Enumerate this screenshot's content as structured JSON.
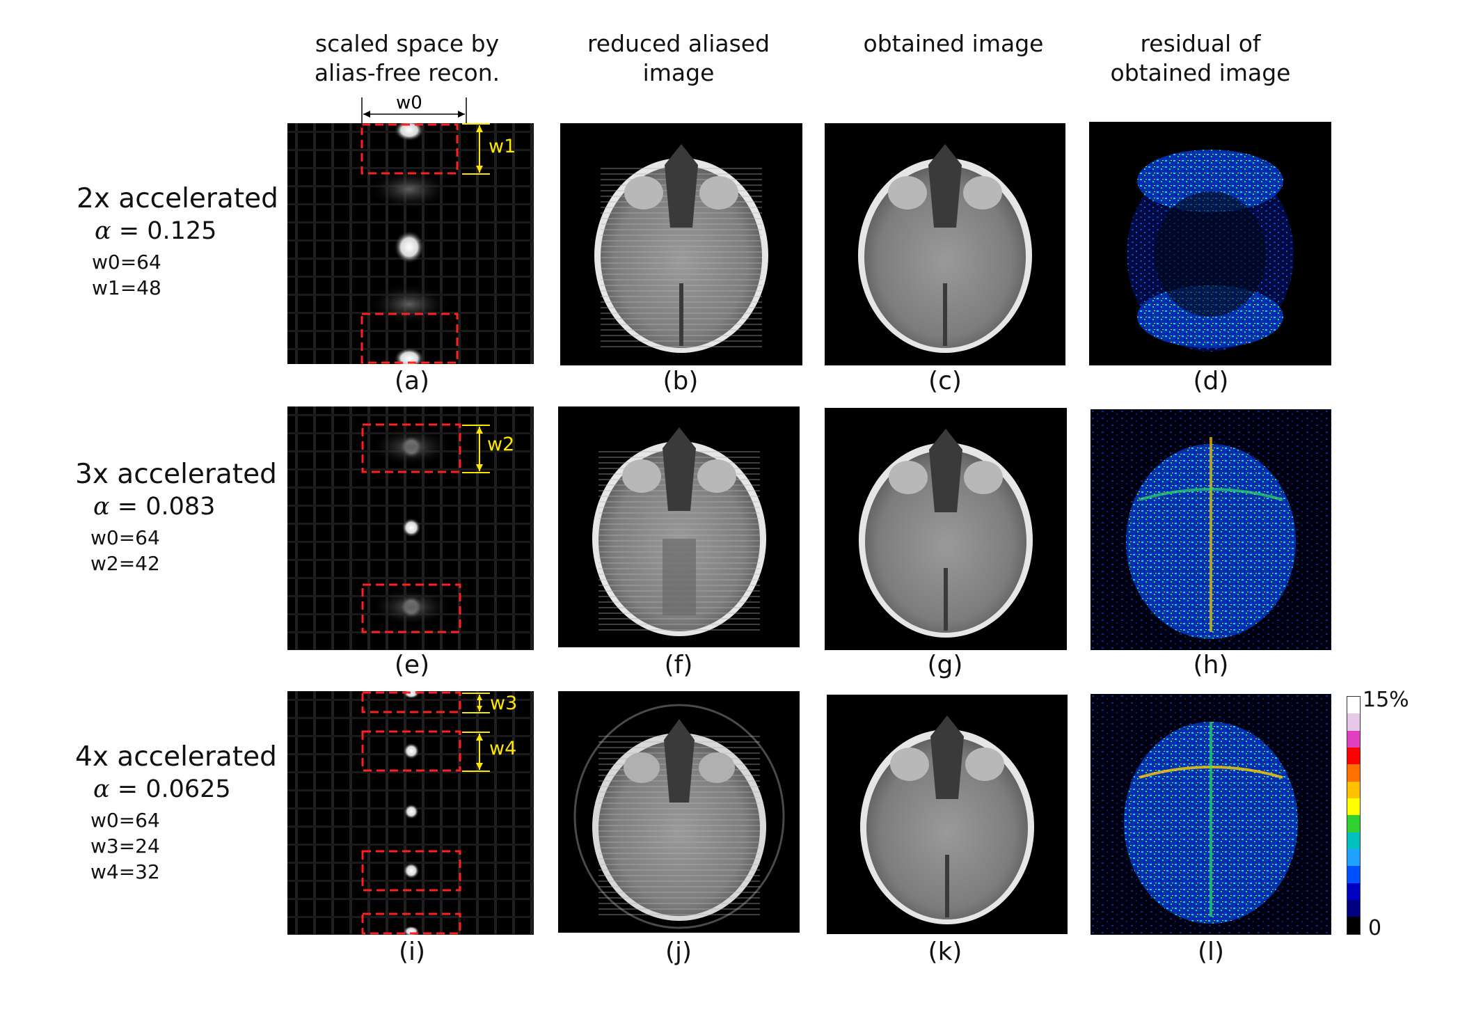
{
  "columns": [
    {
      "title": "scaled space by\nalias-free recon."
    },
    {
      "title": "reduced aliased\nimage"
    },
    {
      "title": "obtained image"
    },
    {
      "title": "residual of\nobtained image"
    }
  ],
  "rows": [
    {
      "acceleration": "2x accelerated",
      "alpha_symbol": "α",
      "alpha_value": "= 0.125",
      "widths": [
        "w0=64",
        "w1=48"
      ]
    },
    {
      "acceleration": "3x accelerated",
      "alpha_symbol": "α",
      "alpha_value": "= 0.083",
      "widths": [
        "w0=64",
        "w2=42"
      ]
    },
    {
      "acceleration": "4x accelerated",
      "alpha_symbol": "α",
      "alpha_value": "= 0.0625",
      "widths": [
        "w0=64",
        "w3=24",
        "w4=32"
      ]
    }
  ],
  "panel_labels": [
    "(a)",
    "(b)",
    "(c)",
    "(d)",
    "(e)",
    "(f)",
    "(g)",
    "(h)",
    "(i)",
    "(j)",
    "(k)",
    "(l)"
  ],
  "annotations": {
    "w0": "w0",
    "w1": "w1",
    "w2": "w2",
    "w3": "w3",
    "w4": "w4"
  },
  "colorbar": {
    "max_label": "15%",
    "min_label": "0",
    "colors": [
      "#ffffff",
      "#e8c8e8",
      "#e040c0",
      "#ff0000",
      "#ff7000",
      "#ffc000",
      "#ffff00",
      "#30d030",
      "#00c0c0",
      "#20a0ff",
      "#0050ff",
      "#0000c0",
      "#000080",
      "#000000"
    ]
  },
  "colors": {
    "box": "#ff2020",
    "annotation": "#ffe600"
  }
}
